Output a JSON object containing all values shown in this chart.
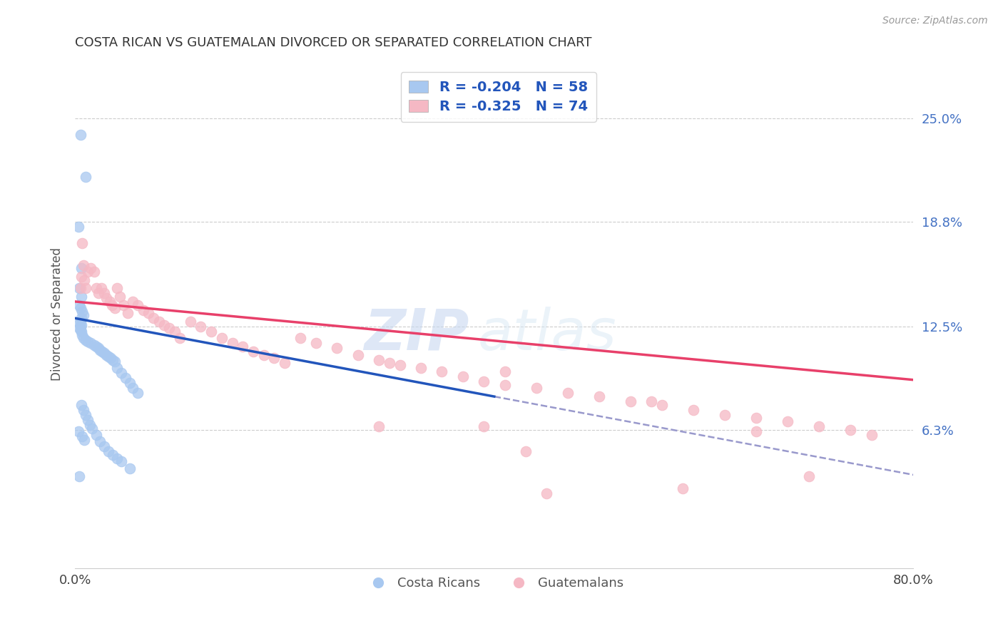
{
  "title": "COSTA RICAN VS GUATEMALAN DIVORCED OR SEPARATED CORRELATION CHART",
  "source": "Source: ZipAtlas.com",
  "ylabel": "Divorced or Separated",
  "xmin": 0.0,
  "xmax": 0.8,
  "ymin": -0.02,
  "ymax": 0.285,
  "yticks_labels": [
    "25.0%",
    "18.8%",
    "12.5%",
    "6.3%"
  ],
  "yticks_values": [
    0.25,
    0.188,
    0.125,
    0.063
  ],
  "legend_text_1": "R = -0.204   N = 58",
  "legend_text_2": "R = -0.325   N = 74",
  "cr_color": "#a8c8f0",
  "gt_color": "#f5b8c4",
  "cr_line_color": "#2255bb",
  "gt_line_color": "#e8406a",
  "dashed_line_color": "#9999cc",
  "watermark_zip": "ZIP",
  "watermark_atlas": "atlas",
  "background_color": "#ffffff",
  "cr_scatter_x": [
    0.005,
    0.01,
    0.003,
    0.006,
    0.004,
    0.006,
    0.004,
    0.005,
    0.007,
    0.008,
    0.006,
    0.005,
    0.004,
    0.006,
    0.005,
    0.004,
    0.005,
    0.006,
    0.007,
    0.008,
    0.01,
    0.012,
    0.015,
    0.018,
    0.02,
    0.022,
    0.024,
    0.026,
    0.028,
    0.03,
    0.032,
    0.034,
    0.036,
    0.038,
    0.04,
    0.044,
    0.048,
    0.052,
    0.055,
    0.06,
    0.006,
    0.008,
    0.01,
    0.012,
    0.014,
    0.016,
    0.02,
    0.024,
    0.028,
    0.032,
    0.036,
    0.04,
    0.044,
    0.052,
    0.003,
    0.007,
    0.009,
    0.004
  ],
  "cr_scatter_y": [
    0.24,
    0.215,
    0.185,
    0.16,
    0.148,
    0.143,
    0.138,
    0.136,
    0.134,
    0.132,
    0.13,
    0.128,
    0.127,
    0.126,
    0.125,
    0.124,
    0.123,
    0.122,
    0.12,
    0.118,
    0.117,
    0.116,
    0.115,
    0.114,
    0.113,
    0.112,
    0.111,
    0.11,
    0.109,
    0.108,
    0.107,
    0.106,
    0.105,
    0.104,
    0.1,
    0.097,
    0.094,
    0.091,
    0.088,
    0.085,
    0.078,
    0.075,
    0.072,
    0.069,
    0.066,
    0.064,
    0.06,
    0.056,
    0.053,
    0.05,
    0.048,
    0.046,
    0.044,
    0.04,
    0.062,
    0.059,
    0.057,
    0.035
  ],
  "gt_scatter_x": [
    0.005,
    0.006,
    0.007,
    0.008,
    0.009,
    0.01,
    0.012,
    0.015,
    0.018,
    0.02,
    0.022,
    0.025,
    0.028,
    0.03,
    0.033,
    0.035,
    0.038,
    0.04,
    0.043,
    0.046,
    0.05,
    0.055,
    0.06,
    0.065,
    0.07,
    0.075,
    0.08,
    0.085,
    0.09,
    0.095,
    0.1,
    0.11,
    0.12,
    0.13,
    0.14,
    0.15,
    0.16,
    0.17,
    0.18,
    0.19,
    0.2,
    0.215,
    0.23,
    0.25,
    0.27,
    0.29,
    0.31,
    0.33,
    0.35,
    0.37,
    0.39,
    0.41,
    0.44,
    0.47,
    0.5,
    0.53,
    0.56,
    0.59,
    0.62,
    0.65,
    0.68,
    0.71,
    0.74,
    0.76,
    0.43,
    0.3,
    0.41,
    0.39,
    0.65,
    0.55,
    0.58,
    0.7,
    0.29,
    0.45
  ],
  "gt_scatter_y": [
    0.148,
    0.155,
    0.175,
    0.162,
    0.153,
    0.148,
    0.158,
    0.16,
    0.158,
    0.148,
    0.145,
    0.148,
    0.145,
    0.142,
    0.14,
    0.138,
    0.136,
    0.148,
    0.143,
    0.138,
    0.133,
    0.14,
    0.138,
    0.135,
    0.133,
    0.13,
    0.128,
    0.126,
    0.124,
    0.122,
    0.118,
    0.128,
    0.125,
    0.122,
    0.118,
    0.115,
    0.113,
    0.11,
    0.108,
    0.106,
    0.103,
    0.118,
    0.115,
    0.112,
    0.108,
    0.105,
    0.102,
    0.1,
    0.098,
    0.095,
    0.092,
    0.09,
    0.088,
    0.085,
    0.083,
    0.08,
    0.078,
    0.075,
    0.072,
    0.07,
    0.068,
    0.065,
    0.063,
    0.06,
    0.05,
    0.103,
    0.098,
    0.065,
    0.062,
    0.08,
    0.028,
    0.035,
    0.065,
    0.025
  ],
  "cr_line_x": [
    0.0,
    0.4
  ],
  "cr_line_y": [
    0.13,
    0.083
  ],
  "gt_line_x": [
    0.0,
    0.8
  ],
  "gt_line_y": [
    0.14,
    0.093
  ],
  "dashed_line_x": [
    0.4,
    0.8
  ],
  "dashed_line_y": [
    0.083,
    0.036
  ]
}
